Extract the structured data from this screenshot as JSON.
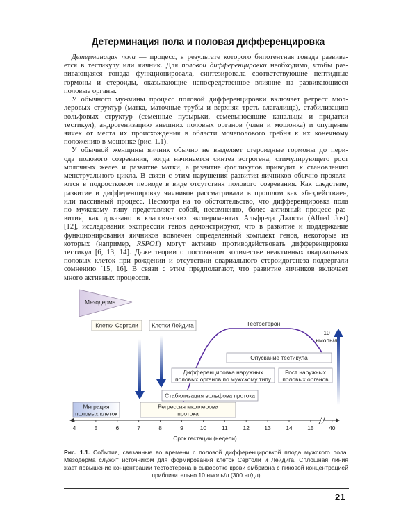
{
  "title": "Детерминация пола и половая дифференцировка",
  "paragraphs": [
    [
      [
        {
          "t": "Детерминация пола",
          "i": true
        },
        {
          "t": " — процесс, в результате которого бипотентная гонада развива-"
        }
      ],
      [
        {
          "t": "ется в тестикулу или яичник. Для "
        },
        {
          "t": "половой дифференцировки",
          "i": true
        },
        {
          "t": " необходимо, чтобы раз-"
        }
      ],
      [
        {
          "t": "вивающаяся гонада функционировала, синтезировала соответствующие пептидные"
        }
      ],
      [
        {
          "t": "гормоны и стероиды, оказывающие непосредственное влияние на развивающиеся"
        }
      ],
      [
        {
          "t": "половые органы."
        }
      ]
    ],
    [
      [
        {
          "t": "У обычного мужчины процесс половой дифференцировки включает регресс мюл-"
        }
      ],
      [
        {
          "t": "леровых структур (матка, маточные трубы и верхняя треть влагалища), стабилизацию"
        }
      ],
      [
        {
          "t": "вольфовых структур (семенные пузырьки, семевыносящие канальцы и придатки"
        }
      ],
      [
        {
          "t": "тестикул), андрогенизацию внешних половых органов (член и мошонка) и опущение"
        }
      ],
      [
        {
          "t": "яичек от места их происхождения в области мочеполового гребня к их конечному"
        }
      ],
      [
        {
          "t": "положению в мошонке (рис. 1.1)."
        }
      ]
    ],
    [
      [
        {
          "t": "У обычной женщины яичник обычно не выделяет стероидные гормоны до пери-"
        }
      ],
      [
        {
          "t": "ода полового созревания, когда начинается синтез эстрогена, стимулирующего рост"
        }
      ],
      [
        {
          "t": "молочных желез и развитие матки, а развитие фолликулов приводит к становлению"
        }
      ],
      [
        {
          "t": "менструального цикла. В связи с этим нарушения развития яичников обычно проявля-"
        }
      ],
      [
        {
          "t": "ются в подростковом периоде в виде отсутствия полового созревания. Как следствие,"
        }
      ],
      [
        {
          "t": "развитие и дифференцировку яичников рассматривали в прошлом как «бездействие»,"
        }
      ],
      [
        {
          "t": "или пассивный процесс. Несмотря на то обстоятельство, что дифференцировка пола"
        }
      ],
      [
        {
          "t": "по мужскому типу представляет собой, несомненно, более активный процесс раз-"
        }
      ],
      [
        {
          "t": "вития, как доказано в классических экспериментах Альфреда Джоста (Alfred Jost)"
        }
      ],
      [
        {
          "t": "[12], исследования экспрессии генов демонстрируют, что в развитие и поддержание"
        }
      ],
      [
        {
          "t": "функционирования яичников вовлечен определенный комплект генов, некоторые из"
        }
      ],
      [
        {
          "t": "которых (например, "
        },
        {
          "t": "RSPO1",
          "i": true
        },
        {
          "t": ") могут активно противодействовать дифференцировке"
        }
      ],
      [
        {
          "t": "тестикул [6, 13, 14]. Даже теории о постоянном количестве неактивных овариальных"
        }
      ],
      [
        {
          "t": "половых клеток при рождении и отсутствии овариального стероидогенеза подвергали"
        }
      ],
      [
        {
          "t": "сомнению [15, 16]. В связи с этим предполагают, что развитие яичников включает"
        }
      ],
      [
        {
          "t": "много активных процессов."
        }
      ]
    ]
  ],
  "figure": {
    "mesoderm": "Мезодерма",
    "sertoli": "Клетки Сертоли",
    "leydig": "Клетки Лейдига",
    "testosterone": "Тестостерон",
    "peak": [
      "10",
      "нмоль/л"
    ],
    "testis_descent": "Опускание тестикула",
    "external_diff": [
      "Дифференцировка наружных",
      "половых органов по мужскому типу"
    ],
    "external_growth": [
      "Рост наружных",
      "половых органов"
    ],
    "wolffian": "Стабилизация вольфова протока",
    "migration": [
      "Миграция",
      "половых клеток"
    ],
    "mullerian": [
      "Регрессия мюллерова",
      "протока"
    ],
    "axis_ticks": [
      "4",
      "5",
      "6",
      "7",
      "8",
      "9",
      "10",
      "11",
      "12",
      "13",
      "14",
      "15",
      "40"
    ],
    "axis_label": "Срок гестации (недели)",
    "colors": {
      "curve": "#5a2ca0",
      "arrow": "#1c3f9a",
      "mesoderm": "#e6dcef",
      "migration": "#c9d3ee",
      "box_border": "#8a8a9a"
    }
  },
  "caption": {
    "label": "Рис. 1.1.",
    "lines": [
      " События, связанные во времени с половой дифференцировкой плода мужского пола.",
      "Мезодерма служит источником для формирования клеток Сертоли и Лейдига. Сплошная линия изобра-",
      "жает повышение концентрации тестостерона в сыворотке крови эмбриона с пиковой концентрацией",
      "приблизительно 10 нмоль/л (300 нг/дл)"
    ]
  },
  "page_number": "21"
}
